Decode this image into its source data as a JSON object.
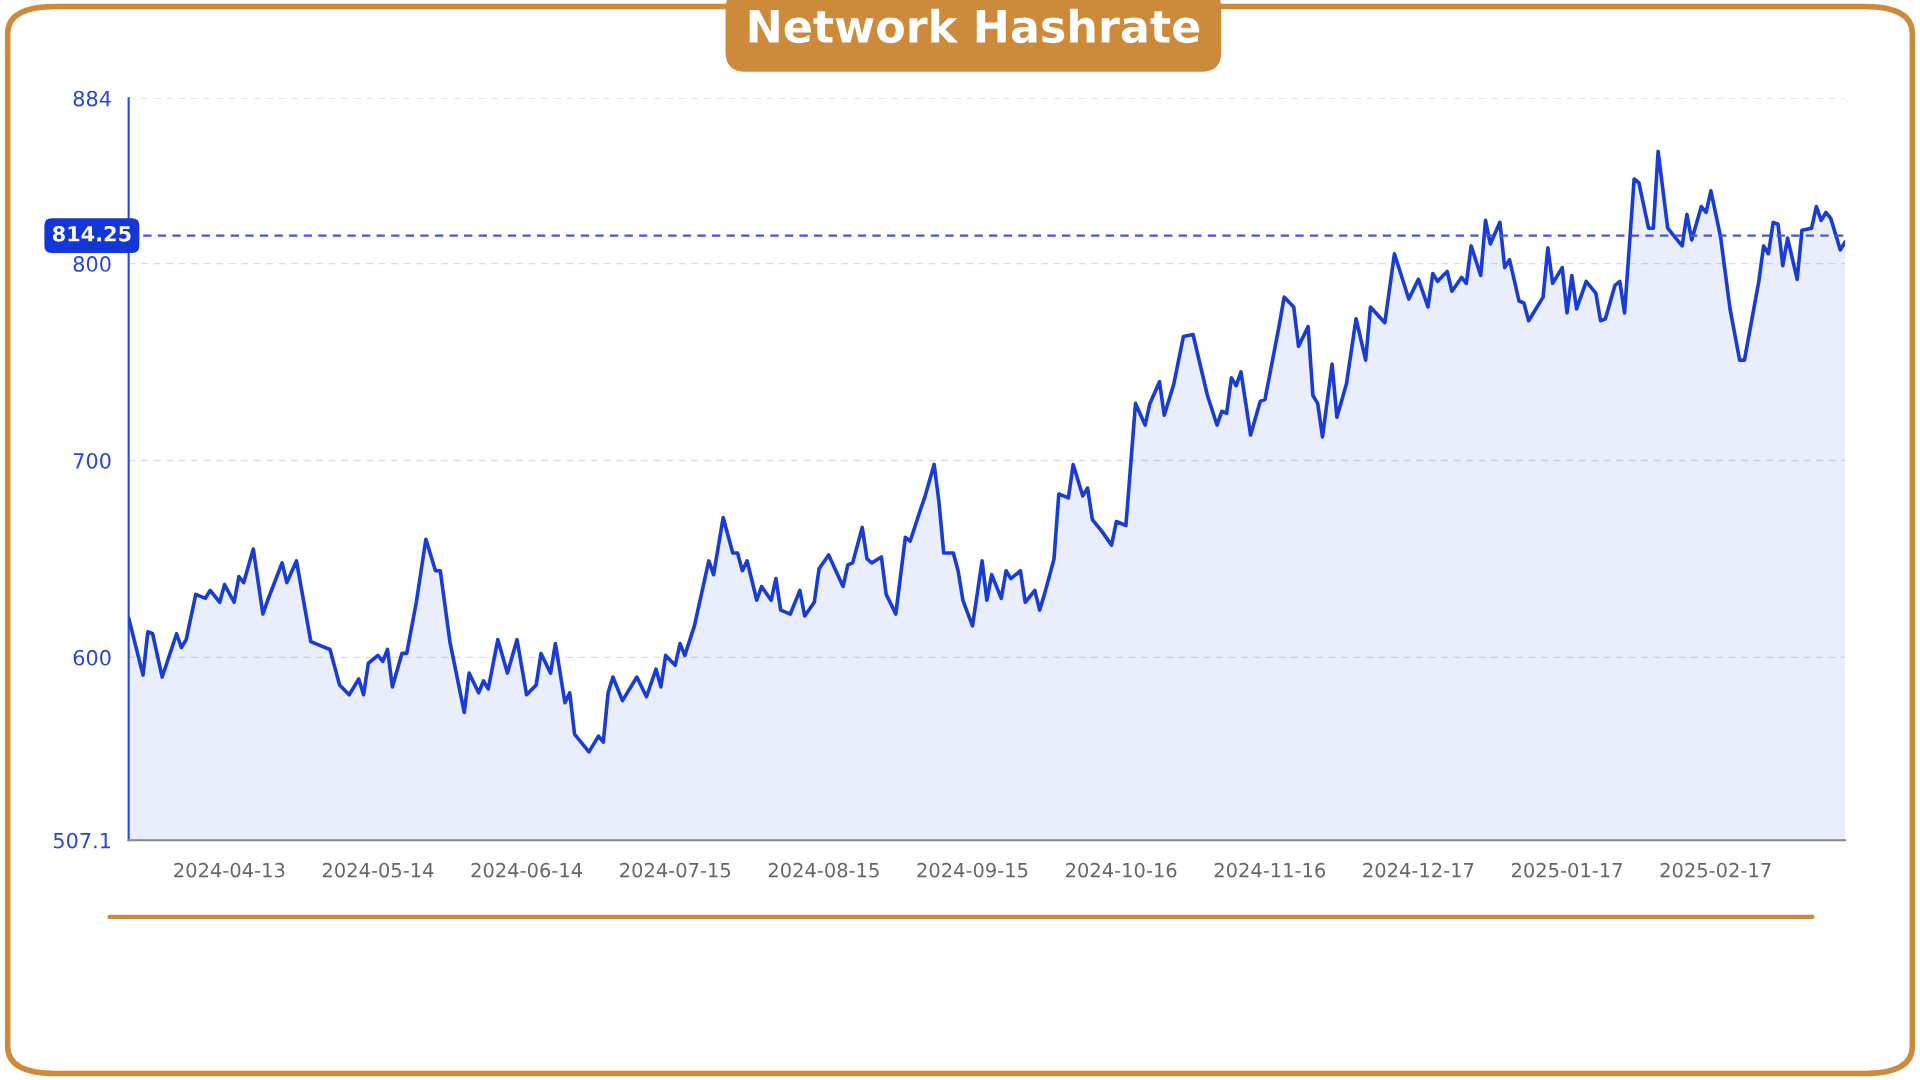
{
  "chart_data": {
    "type": "area",
    "title": "Network Hashrate",
    "color": "#1a3cd6",
    "grid": "y",
    "xlim": [
      "2024-03-23",
      "2025-03-16"
    ],
    "xticks": [
      "2024-04-13",
      "2024-05-14",
      "2024-06-14",
      "2024-07-15",
      "2024-08-15",
      "2024-09-15",
      "2024-10-16",
      "2024-11-16",
      "2024-12-17",
      "2025-01-17",
      "2025-02-17"
    ],
    "ylim": [
      507.1,
      884
    ],
    "yticks": [
      507.1,
      600,
      700,
      800,
      884
    ],
    "ref_lines": [
      {
        "axis": "y",
        "value": 814.25,
        "label": "814.25",
        "color": "#4455dd",
        "line_style": "dashed"
      }
    ],
    "x": [
      "2024-03-23",
      "2024-03-26",
      "2024-03-27",
      "2024-03-28",
      "2024-03-30",
      "2024-04-02",
      "2024-04-03",
      "2024-04-04",
      "2024-04-06",
      "2024-04-08",
      "2024-04-09",
      "2024-04-11",
      "2024-04-12",
      "2024-04-14",
      "2024-04-15",
      "2024-04-16",
      "2024-04-18",
      "2024-04-20",
      "2024-04-21",
      "2024-04-24",
      "2024-04-25",
      "2024-04-27",
      "2024-04-30",
      "2024-05-02",
      "2024-05-04",
      "2024-05-06",
      "2024-05-08",
      "2024-05-10",
      "2024-05-11",
      "2024-05-12",
      "2024-05-14",
      "2024-05-15",
      "2024-05-16",
      "2024-05-17",
      "2024-05-19",
      "2024-05-20",
      "2024-05-22",
      "2024-05-24",
      "2024-05-26",
      "2024-05-27",
      "2024-05-29",
      "2024-06-01",
      "2024-06-02",
      "2024-06-04",
      "2024-06-05",
      "2024-06-06",
      "2024-06-08",
      "2024-06-10",
      "2024-06-12",
      "2024-06-14",
      "2024-06-16",
      "2024-06-17",
      "2024-06-19",
      "2024-06-20",
      "2024-06-22",
      "2024-06-23",
      "2024-06-24",
      "2024-06-27",
      "2024-06-29",
      "2024-06-30",
      "2024-07-01",
      "2024-07-02",
      "2024-07-04",
      "2024-07-07",
      "2024-07-09",
      "2024-07-11",
      "2024-07-12",
      "2024-07-13",
      "2024-07-15",
      "2024-07-16",
      "2024-07-17",
      "2024-07-19",
      "2024-07-22",
      "2024-07-23",
      "2024-07-25",
      "2024-07-27",
      "2024-07-28",
      "2024-07-29",
      "2024-07-30",
      "2024-08-01",
      "2024-08-02",
      "2024-08-04",
      "2024-08-05",
      "2024-08-06",
      "2024-08-08",
      "2024-08-10",
      "2024-08-11",
      "2024-08-13",
      "2024-08-14",
      "2024-08-16",
      "2024-08-19",
      "2024-08-20",
      "2024-08-21",
      "2024-08-23",
      "2024-08-24",
      "2024-08-25",
      "2024-08-27",
      "2024-08-28",
      "2024-08-30",
      "2024-09-01",
      "2024-09-02",
      "2024-09-04",
      "2024-09-05",
      "2024-09-07",
      "2024-09-08",
      "2024-09-09",
      "2024-09-11",
      "2024-09-12",
      "2024-09-13",
      "2024-09-15",
      "2024-09-17",
      "2024-09-18",
      "2024-09-19",
      "2024-09-21",
      "2024-09-22",
      "2024-09-23",
      "2024-09-25",
      "2024-09-26",
      "2024-09-28",
      "2024-09-29",
      "2024-09-30",
      "2024-10-02",
      "2024-10-03",
      "2024-10-05",
      "2024-10-06",
      "2024-10-08",
      "2024-10-09",
      "2024-10-10",
      "2024-10-12",
      "2024-10-14",
      "2024-10-15",
      "2024-10-17",
      "2024-10-19",
      "2024-10-21",
      "2024-10-22",
      "2024-10-24",
      "2024-10-25",
      "2024-10-27",
      "2024-10-29",
      "2024-10-31",
      "2024-11-03",
      "2024-11-05",
      "2024-11-06",
      "2024-11-07",
      "2024-11-08",
      "2024-11-09",
      "2024-11-10",
      "2024-11-12",
      "2024-11-14",
      "2024-11-15",
      "2024-11-18",
      "2024-11-19",
      "2024-11-21",
      "2024-11-22",
      "2024-11-24",
      "2024-11-25",
      "2024-11-26",
      "2024-11-27",
      "2024-11-29",
      "2024-11-30",
      "2024-12-02",
      "2024-12-04",
      "2024-12-06",
      "2024-12-07",
      "2024-12-10",
      "2024-12-12",
      "2024-12-15",
      "2024-12-17",
      "2024-12-19",
      "2024-12-20",
      "2024-12-21",
      "2024-12-23",
      "2024-12-24",
      "2024-12-26",
      "2024-12-27",
      "2024-12-28",
      "2024-12-30",
      "2024-12-31",
      "2025-01-01",
      "2025-01-03",
      "2025-01-04",
      "2025-01-05",
      "2025-01-07",
      "2025-01-08",
      "2025-01-09",
      "2025-01-12",
      "2025-01-13",
      "2025-01-14",
      "2025-01-16",
      "2025-01-17",
      "2025-01-18",
      "2025-01-19",
      "2025-01-21",
      "2025-01-23",
      "2025-01-24",
      "2025-01-25",
      "2025-01-27",
      "2025-01-28",
      "2025-01-29",
      "2025-01-31",
      "2025-02-01",
      "2025-02-03",
      "2025-02-04",
      "2025-02-05",
      "2025-02-07",
      "2025-02-08",
      "2025-02-10",
      "2025-02-11",
      "2025-02-12",
      "2025-02-14",
      "2025-02-15",
      "2025-02-16",
      "2025-02-18",
      "2025-02-20",
      "2025-02-22",
      "2025-02-23",
      "2025-02-26",
      "2025-02-27",
      "2025-02-28",
      "2025-03-01",
      "2025-03-02",
      "2025-03-03",
      "2025-03-04",
      "2025-03-06",
      "2025-03-07",
      "2025-03-09",
      "2025-03-10",
      "2025-03-11",
      "2025-03-12",
      "2025-03-13",
      "2025-03-15",
      "2025-03-16"
    ],
    "values": [
      620,
      591,
      613,
      612,
      590,
      612,
      605,
      609,
      632,
      630,
      634,
      628,
      637,
      628,
      641,
      638,
      655,
      622,
      629,
      648,
      638,
      649,
      608,
      606,
      604,
      586,
      581,
      589,
      581,
      597,
      601,
      598,
      604,
      585,
      602,
      602,
      628,
      660,
      644,
      644,
      608,
      572,
      592,
      582,
      588,
      584,
      609,
      592,
      609,
      581,
      586,
      602,
      592,
      607,
      577,
      582,
      561,
      552,
      560,
      557,
      582,
      590,
      578,
      590,
      580,
      594,
      585,
      601,
      596,
      607,
      601,
      616,
      649,
      642,
      671,
      653,
      653,
      644,
      649,
      629,
      636,
      629,
      640,
      624,
      622,
      634,
      621,
      628,
      645,
      652,
      636,
      647,
      648,
      666,
      650,
      648,
      651,
      632,
      622,
      661,
      659,
      674,
      681,
      698,
      679,
      653,
      653,
      644,
      629,
      616,
      649,
      629,
      642,
      630,
      644,
      640,
      644,
      628,
      634,
      624,
      632,
      650,
      683,
      681,
      698,
      682,
      686,
      670,
      664,
      657,
      669,
      667,
      729,
      718,
      729,
      740,
      723,
      739,
      763,
      764,
      733,
      718,
      725,
      724,
      742,
      738,
      745,
      713,
      730,
      731,
      769,
      783,
      778,
      758,
      768,
      733,
      729,
      712,
      749,
      722,
      739,
      772,
      751,
      778,
      770,
      805,
      782,
      792,
      778,
      795,
      791,
      796,
      786,
      793,
      790,
      809,
      794,
      822,
      810,
      821,
      798,
      802,
      781,
      780,
      771,
      783,
      808,
      790,
      798,
      775,
      794,
      777,
      791,
      785,
      771,
      772,
      789,
      791,
      775,
      843,
      841,
      818,
      818,
      857,
      818,
      815,
      809,
      825,
      812,
      829,
      826,
      837,
      814,
      777,
      751,
      751,
      791,
      809,
      805,
      821,
      820,
      799,
      813,
      792,
      817,
      818,
      829,
      822,
      826,
      823,
      807,
      811
    ]
  }
}
